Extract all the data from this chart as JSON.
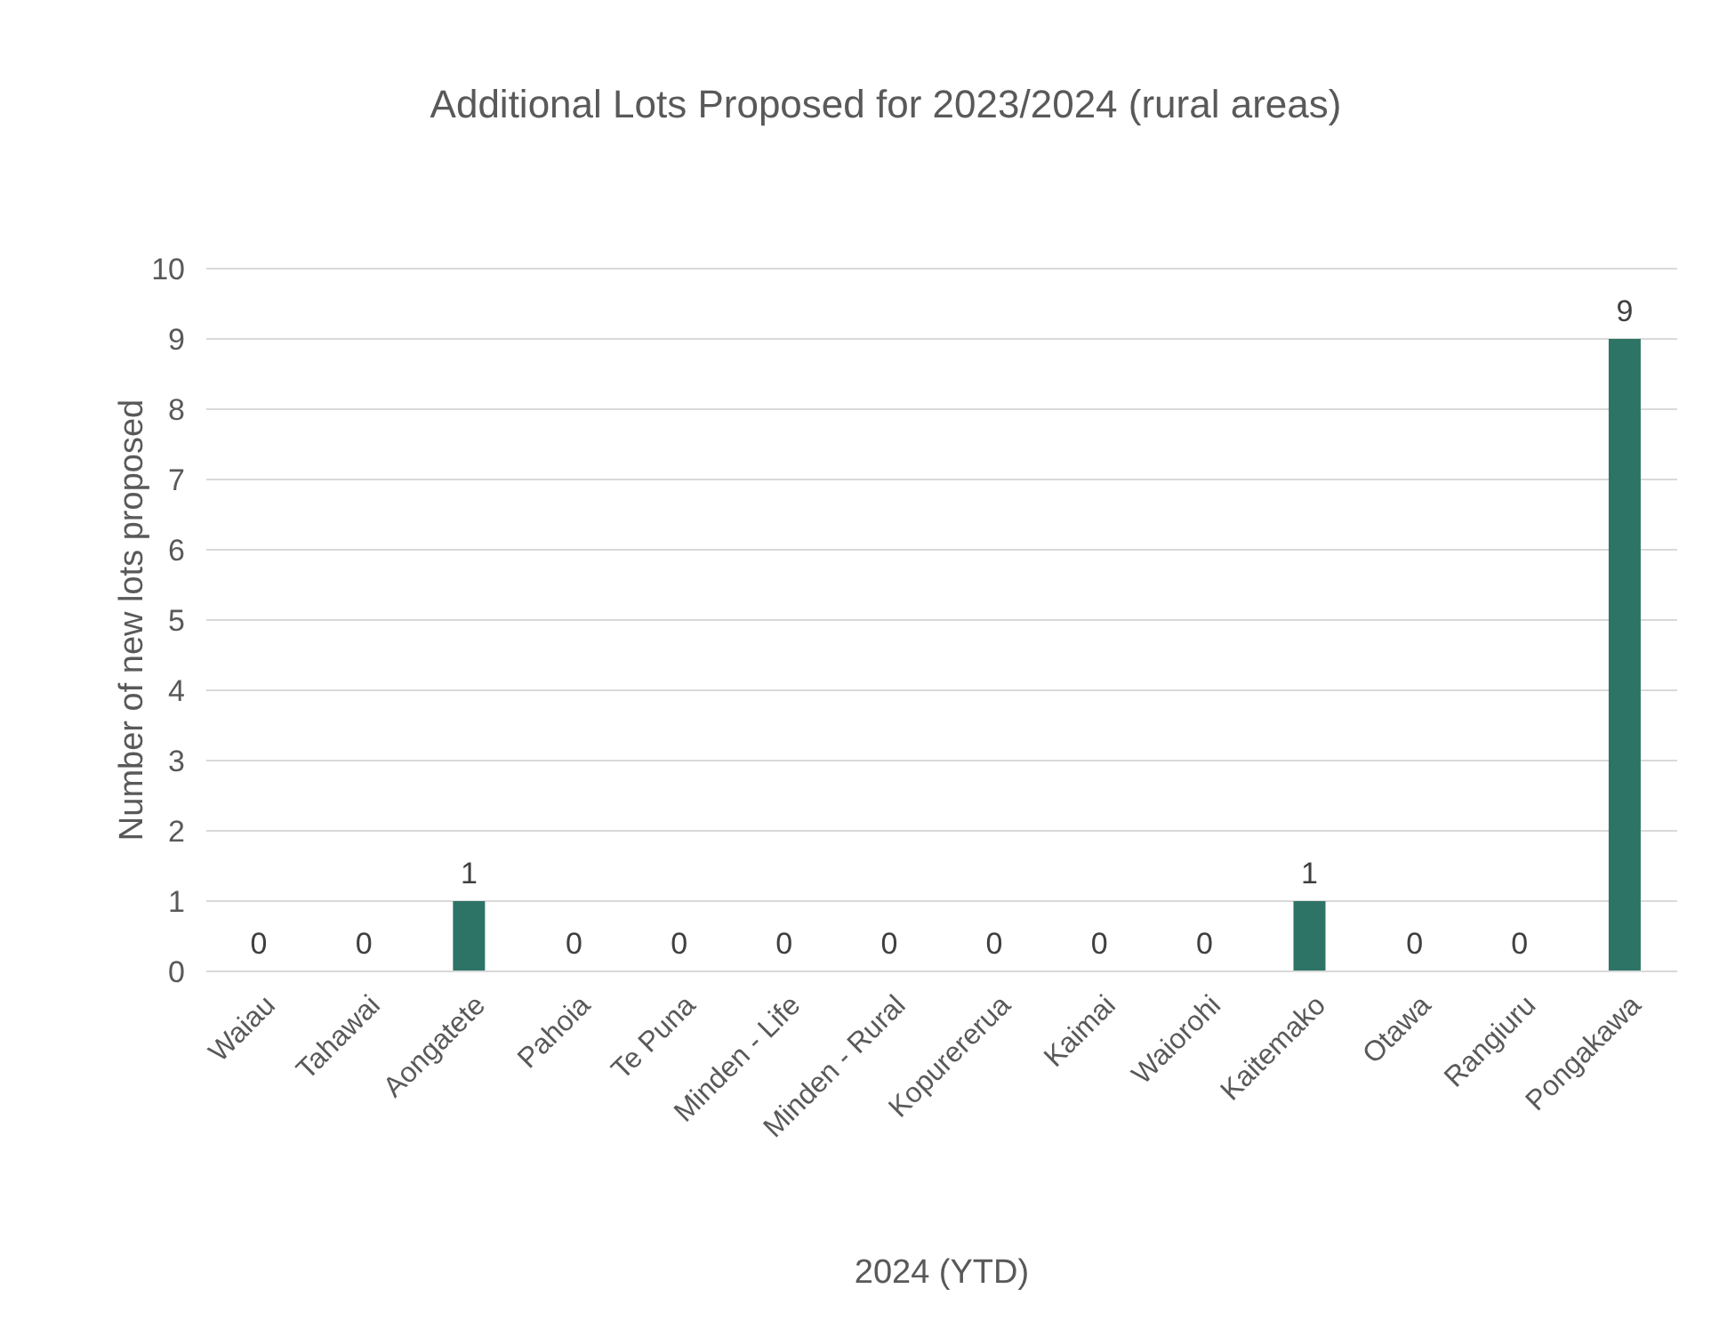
{
  "chart_data": {
    "type": "bar",
    "title": "Additional Lots Proposed for 2023/2024 (rural areas)",
    "xlabel": "2024 (YTD)",
    "ylabel": "Number of new lots proposed",
    "categories": [
      "Waiau",
      "Tahawai",
      "Aongatete",
      "Pahoia",
      "Te Puna",
      "Minden - Life",
      "Minden - Rural",
      "Kopurererua",
      "Kaimai",
      "Waiorohi",
      "Kaitemako",
      "Otawa",
      "Rangiuru",
      "Pongakawa"
    ],
    "values": [
      0,
      0,
      1,
      0,
      0,
      0,
      0,
      0,
      0,
      0,
      1,
      0,
      0,
      9
    ],
    "color": "#2e7466",
    "ylim": [
      0,
      10
    ],
    "yticks": [
      0,
      1,
      2,
      3,
      4,
      5,
      6,
      7,
      8,
      9,
      10
    ],
    "grid": "y",
    "data_labels": true
  }
}
